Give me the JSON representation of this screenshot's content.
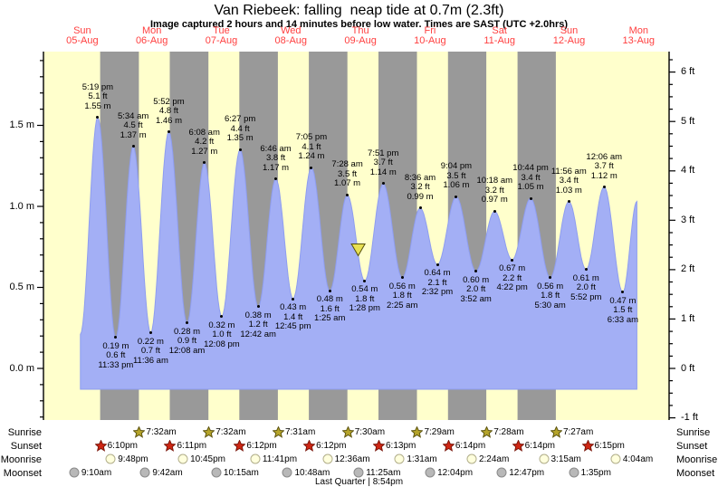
{
  "title": "Van Riebeek: falling  neap tide at 0.7m (2.3ft)",
  "subtitle": "Image captured 2 hours and 14 minutes before low water. Times are SAST (UTC +2.0hrs)",
  "colors": {
    "day_background": "#ffffcc",
    "night_band": "#999999",
    "tide_fill": "#a3aff5",
    "tide_edge": "#8e9df0",
    "date_label": "#ff4040",
    "sunrise_star": "#b5a42a",
    "sunrise_star_edge": "#5e5510",
    "sunset_star": "#cf2613",
    "sunset_star_edge": "#7a150a",
    "moonrise_circle": "#ffffdd",
    "moonrise_circle_edge": "#b0ad8a",
    "moonset_circle": "#b8b8b8",
    "moonset_circle_edge": "#8a8a8a",
    "marker_fill": "#e8e052",
    "marker_edge": "#55500a",
    "axis": "#000000"
  },
  "chart_data": {
    "type": "area",
    "title": "Van Riebeek: falling  neap tide at 0.7m (2.3ft)",
    "subtitle": "Image captured 2 hours and 14 minutes before low water. Times are SAST (UTC +2.0hrs)",
    "x_axis_days": [
      {
        "name": "Sun",
        "date": "05-Aug"
      },
      {
        "name": "Mon",
        "date": "06-Aug"
      },
      {
        "name": "Tue",
        "date": "07-Aug"
      },
      {
        "name": "Wed",
        "date": "08-Aug"
      },
      {
        "name": "Thu",
        "date": "09-Aug"
      },
      {
        "name": "Fri",
        "date": "10-Aug"
      },
      {
        "name": "Sat",
        "date": "11-Aug"
      },
      {
        "name": "Sun",
        "date": "12-Aug"
      },
      {
        "name": "Mon",
        "date": "13-Aug"
      }
    ],
    "y_axis_left": {
      "unit": "m",
      "ticks": [
        {
          "v": 1.5,
          "label": "1.5 m"
        },
        {
          "v": 1.0,
          "label": "1.0 m"
        },
        {
          "v": 0.5,
          "label": "0.5 m"
        },
        {
          "v": 0.0,
          "label": "0.0 m"
        }
      ],
      "minor_step_m": 0.1
    },
    "y_axis_right": {
      "unit": "ft",
      "ticks": [
        {
          "v": 6,
          "label": "6 ft"
        },
        {
          "v": 5,
          "label": "5 ft"
        },
        {
          "v": 4,
          "label": "4 ft"
        },
        {
          "v": 3,
          "label": "3 ft"
        },
        {
          "v": 2,
          "label": "2 ft"
        },
        {
          "v": 1,
          "label": "1 ft"
        },
        {
          "v": 0,
          "label": "0 ft"
        },
        {
          "v": -1,
          "label": "-1 ft"
        }
      ],
      "minor_step_ft": 0.25
    },
    "tide_extremes": [
      {
        "type": "high",
        "day": 0,
        "time": "5:19 pm",
        "ft": 5.1,
        "m": 1.55
      },
      {
        "type": "low",
        "day": 0,
        "time": "11:33 pm",
        "ft": 0.6,
        "m": 0.19
      },
      {
        "type": "high",
        "day": 1,
        "time": "5:34 am",
        "ft": 4.5,
        "m": 1.37
      },
      {
        "type": "low",
        "day": 1,
        "time": "11:36 am",
        "ft": 0.7,
        "m": 0.22
      },
      {
        "type": "high",
        "day": 1,
        "time": "5:52 pm",
        "ft": 4.8,
        "m": 1.46
      },
      {
        "type": "low",
        "day": 2,
        "time": "12:08 am",
        "ft": 0.9,
        "m": 0.28
      },
      {
        "type": "high",
        "day": 2,
        "time": "6:08 am",
        "ft": 4.2,
        "m": 1.27
      },
      {
        "type": "low",
        "day": 2,
        "time": "12:08 pm",
        "ft": 1.0,
        "m": 0.32
      },
      {
        "type": "high",
        "day": 2,
        "time": "6:27 pm",
        "ft": 4.4,
        "m": 1.35
      },
      {
        "type": "low",
        "day": 3,
        "time": "12:42 am",
        "ft": 1.2,
        "m": 0.38
      },
      {
        "type": "high",
        "day": 3,
        "time": "6:46 am",
        "ft": 3.8,
        "m": 1.17
      },
      {
        "type": "low",
        "day": 3,
        "time": "12:45 pm",
        "ft": 1.4,
        "m": 0.43
      },
      {
        "type": "high",
        "day": 3,
        "time": "7:05 pm",
        "ft": 4.1,
        "m": 1.24
      },
      {
        "type": "low",
        "day": 4,
        "time": "1:25 am",
        "ft": 1.6,
        "m": 0.48
      },
      {
        "type": "high",
        "day": 4,
        "time": "7:28 am",
        "ft": 3.5,
        "m": 1.07
      },
      {
        "type": "low",
        "day": 4,
        "time": "1:28 pm",
        "ft": 1.8,
        "m": 0.54
      },
      {
        "type": "high",
        "day": 4,
        "time": "7:51 pm",
        "ft": 3.7,
        "m": 1.14
      },
      {
        "type": "low",
        "day": 5,
        "time": "2:25 am",
        "ft": 1.8,
        "m": 0.56
      },
      {
        "type": "high",
        "day": 5,
        "time": "8:36 am",
        "ft": 3.2,
        "m": 0.99
      },
      {
        "type": "low",
        "day": 5,
        "time": "2:32 pm",
        "ft": 2.1,
        "m": 0.64
      },
      {
        "type": "high",
        "day": 5,
        "time": "9:04 pm",
        "ft": 3.5,
        "m": 1.06
      },
      {
        "type": "low",
        "day": 6,
        "time": "3:52 am",
        "ft": 2.0,
        "m": 0.6
      },
      {
        "type": "high",
        "day": 6,
        "time": "10:18 am",
        "ft": 3.2,
        "m": 0.97
      },
      {
        "type": "low",
        "day": 6,
        "time": "4:22 pm",
        "ft": 2.2,
        "m": 0.67
      },
      {
        "type": "high",
        "day": 6,
        "time": "10:44 pm",
        "ft": 3.4,
        "m": 1.05
      },
      {
        "type": "low",
        "day": 7,
        "time": "5:30 am",
        "ft": 1.8,
        "m": 0.56
      },
      {
        "type": "high",
        "day": 7,
        "time": "11:56 am",
        "ft": 3.4,
        "m": 1.03
      },
      {
        "type": "low",
        "day": 7,
        "time": "5:52 pm",
        "ft": 2.0,
        "m": 0.61
      },
      {
        "type": "high",
        "day": 8,
        "time": "12:06 am",
        "ft": 3.7,
        "m": 1.12
      },
      {
        "type": "low",
        "day": 8,
        "time": "6:33 am",
        "ft": 1.5,
        "m": 0.47
      }
    ],
    "curve_edges": {
      "start": {
        "day": 0,
        "time": "11:20 am",
        "m": 0.21
      },
      "end": {
        "day": 8,
        "time": "11:25 am",
        "m": 1.03
      }
    },
    "current_marker": {
      "day": 4,
      "time": "11:14 am"
    },
    "sun_moon": {
      "sunrise": {
        "label": "Sunrise",
        "events": [
          {
            "day": 1,
            "time": "7:32am"
          },
          {
            "day": 2,
            "time": "7:32am"
          },
          {
            "day": 3,
            "time": "7:31am"
          },
          {
            "day": 4,
            "time": "7:30am"
          },
          {
            "day": 5,
            "time": "7:29am"
          },
          {
            "day": 6,
            "time": "7:28am"
          },
          {
            "day": 7,
            "time": "7:27am"
          }
        ]
      },
      "sunset": {
        "label": "Sunset",
        "events": [
          {
            "day": 0,
            "time": "6:10pm"
          },
          {
            "day": 1,
            "time": "6:11pm"
          },
          {
            "day": 2,
            "time": "6:12pm"
          },
          {
            "day": 3,
            "time": "6:12pm"
          },
          {
            "day": 4,
            "time": "6:13pm"
          },
          {
            "day": 5,
            "time": "6:14pm"
          },
          {
            "day": 6,
            "time": "6:14pm"
          },
          {
            "day": 7,
            "time": "6:15pm"
          }
        ]
      },
      "moonrise": {
        "label": "Moonrise",
        "events": [
          {
            "day": 0,
            "time": "9:48pm"
          },
          {
            "day": 1,
            "time": "10:45pm"
          },
          {
            "day": 2,
            "time": "11:41pm"
          },
          {
            "day": 4,
            "time": "12:36am"
          },
          {
            "day": 5,
            "time": "1:31am"
          },
          {
            "day": 6,
            "time": "2:24am"
          },
          {
            "day": 7,
            "time": "3:15am"
          },
          {
            "day": 8,
            "time": "4:04am"
          }
        ]
      },
      "moonset": {
        "label": "Moonset",
        "events": [
          {
            "day": 0,
            "time": "9:10am"
          },
          {
            "day": 1,
            "time": "9:42am"
          },
          {
            "day": 2,
            "time": "10:15am"
          },
          {
            "day": 3,
            "time": "10:48am"
          },
          {
            "day": 4,
            "time": "11:25am"
          },
          {
            "day": 5,
            "time": "12:04pm"
          },
          {
            "day": 6,
            "time": "12:47pm"
          },
          {
            "day": 7,
            "time": "1:35pm"
          }
        ]
      }
    },
    "moon_phase_caption": "Last Quarter | 8:54pm"
  }
}
